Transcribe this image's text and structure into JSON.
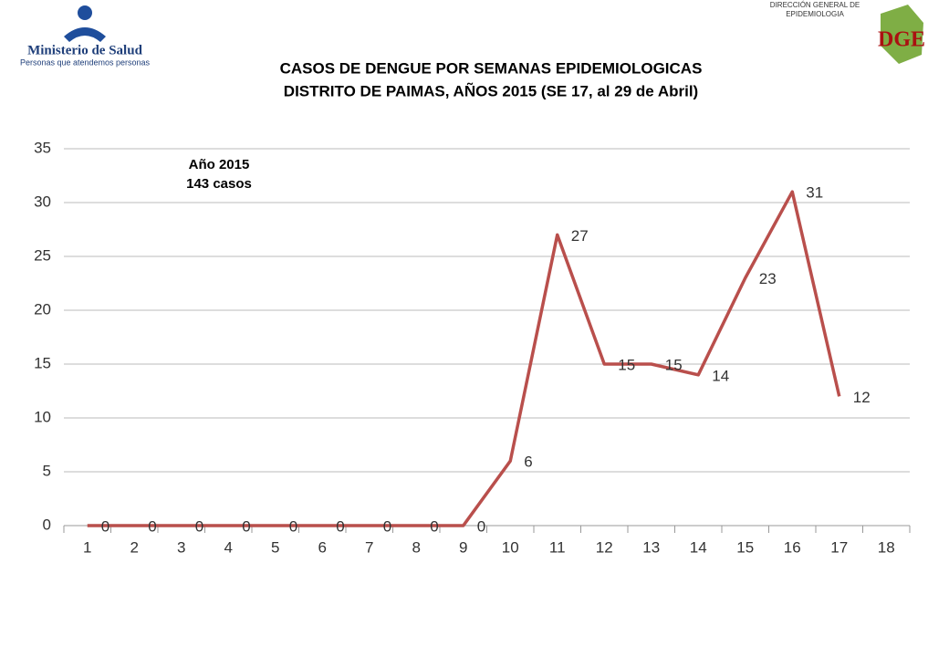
{
  "header": {
    "ministry": "Ministerio de Salud",
    "ministry_tagline": "Personas que atendemos personas",
    "agency_line1": "DIRECCIÓN GENERAL DE",
    "agency_line2": "EPIDEMIOLOGIA",
    "agency_logo": "DGE"
  },
  "chart_data": {
    "type": "line",
    "title": "CASOS DE DENGUE POR SEMANAS EPIDEMIOLOGICAS",
    "subtitle": "DISTRITO DE PAIMAS, AÑOS 2015 (SE 17, al 29 de Abril)",
    "annotations": [
      "Año 2015",
      "143 casos"
    ],
    "categories": [
      "1",
      "2",
      "3",
      "4",
      "5",
      "6",
      "7",
      "8",
      "9",
      "10",
      "11",
      "12",
      "13",
      "14",
      "15",
      "16",
      "17",
      "18"
    ],
    "series": [
      {
        "name": "2015",
        "color": "#b94f4c",
        "values": [
          0,
          0,
          0,
          0,
          0,
          0,
          0,
          0,
          0,
          6,
          27,
          15,
          15,
          14,
          23,
          31,
          12,
          null
        ]
      }
    ],
    "ylim": [
      0,
      35
    ],
    "yticks": [
      0,
      5,
      10,
      15,
      20,
      25,
      30,
      35
    ],
    "grid": true
  }
}
